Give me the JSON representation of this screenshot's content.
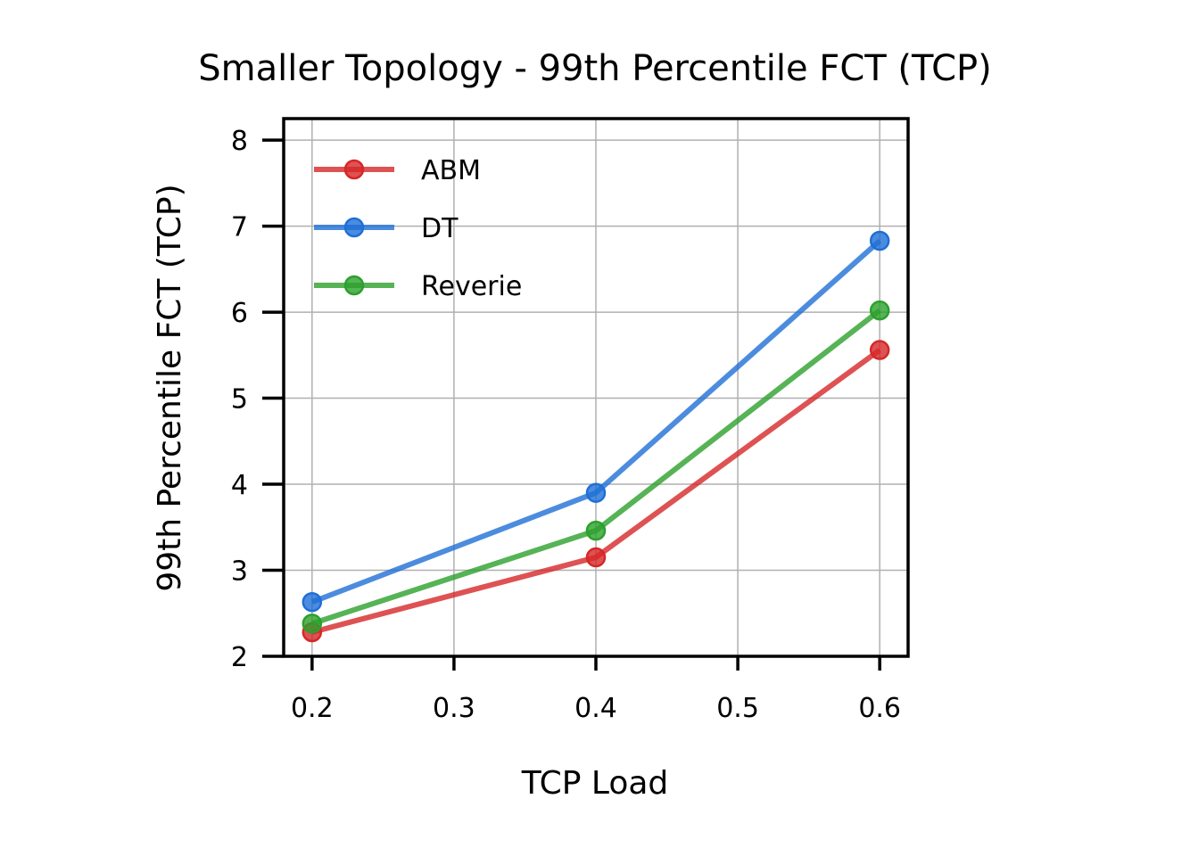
{
  "chart_data": {
    "type": "line",
    "title": "Smaller Topology - 99th Percentile FCT (TCP)",
    "xlabel": "TCP Load",
    "ylabel": "99th Percentile FCT (TCP)",
    "xlim": [
      0.18,
      0.62
    ],
    "ylim": [
      2.0,
      8.25
    ],
    "xticks": [
      0.2,
      0.3,
      0.4,
      0.5,
      0.6
    ],
    "xtick_labels": [
      "0.2",
      "0.3",
      "0.4",
      "0.5",
      "0.6"
    ],
    "yticks": [
      2,
      3,
      4,
      5,
      6,
      7,
      8
    ],
    "ytick_labels": [
      "2",
      "3",
      "4",
      "5",
      "6",
      "7",
      "8"
    ],
    "grid": true,
    "legend_position": "top-left",
    "x": [
      0.2,
      0.4,
      0.6
    ],
    "series": [
      {
        "name": "ABM",
        "color": "#d62728",
        "values": [
          2.28,
          3.15,
          5.56
        ]
      },
      {
        "name": "DT",
        "color": "#1f6fd6",
        "values": [
          2.63,
          3.9,
          6.83
        ]
      },
      {
        "name": "Reverie",
        "color": "#2ca02c",
        "values": [
          2.38,
          3.46,
          6.02
        ]
      }
    ]
  }
}
